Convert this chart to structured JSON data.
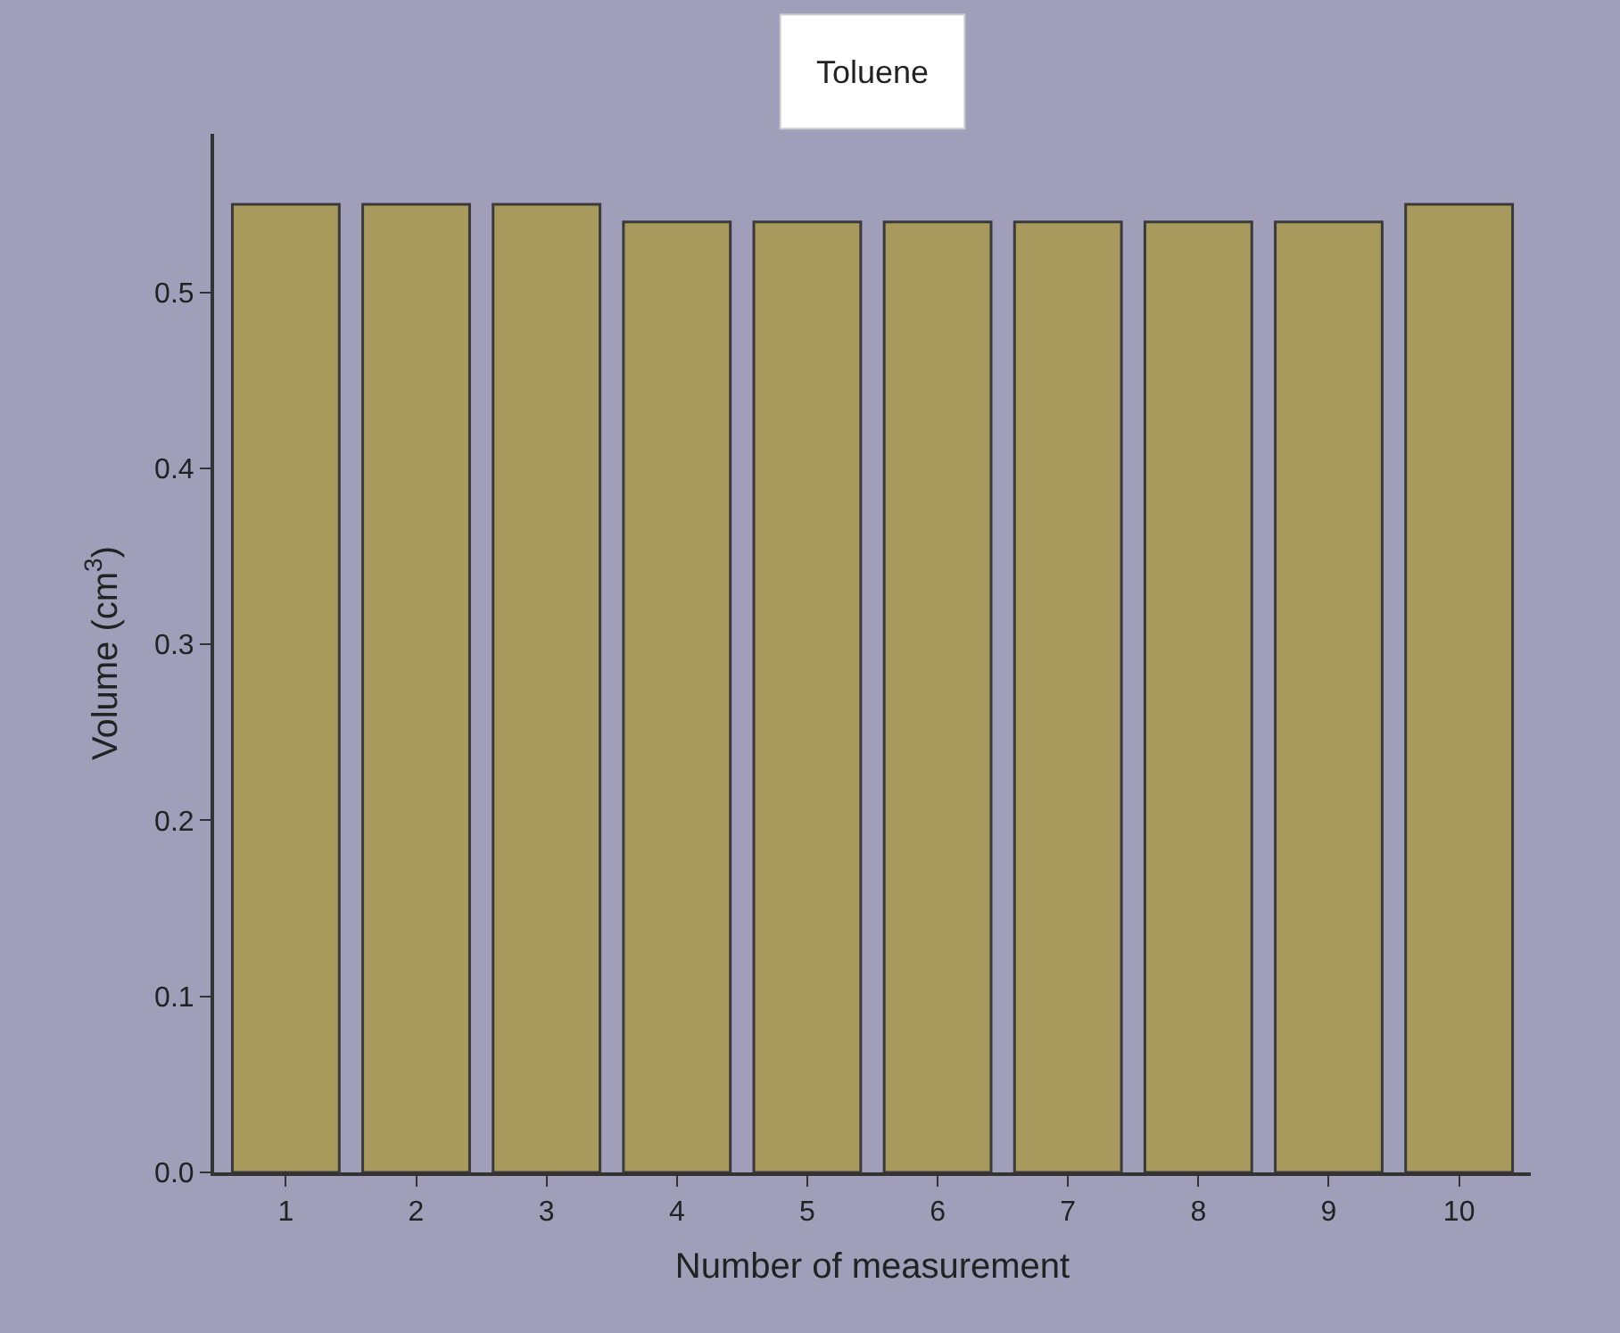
{
  "chart_data": {
    "type": "bar",
    "title": "Toluene",
    "xlabel": "Number of measurement",
    "ylabel": "Volume (cm$^{3}$)",
    "x": [
      1,
      2,
      3,
      4,
      5,
      6,
      7,
      8,
      9,
      10
    ],
    "values": [
      0.55,
      0.55,
      0.55,
      0.54,
      0.54,
      0.54,
      0.54,
      0.54,
      0.54,
      0.55
    ],
    "color": "#a89a5c",
    "xlim": [
      0.45,
      10.55
    ],
    "xticks": [
      1,
      2,
      3,
      4,
      5,
      6,
      7,
      8,
      9,
      10
    ],
    "ylim": [
      0,
      0.59
    ],
    "yticks": [
      {
        "value": 0,
        "label": "0.0"
      },
      {
        "value": 0.1,
        "label": "0.1"
      },
      {
        "value": 0.2,
        "label": "0.2"
      },
      {
        "value": 0.3,
        "label": "0.3"
      },
      {
        "value": 0.4,
        "label": "0.4"
      },
      {
        "value": 0.5,
        "label": "0.5"
      }
    ],
    "grid": false,
    "legend": false
  }
}
